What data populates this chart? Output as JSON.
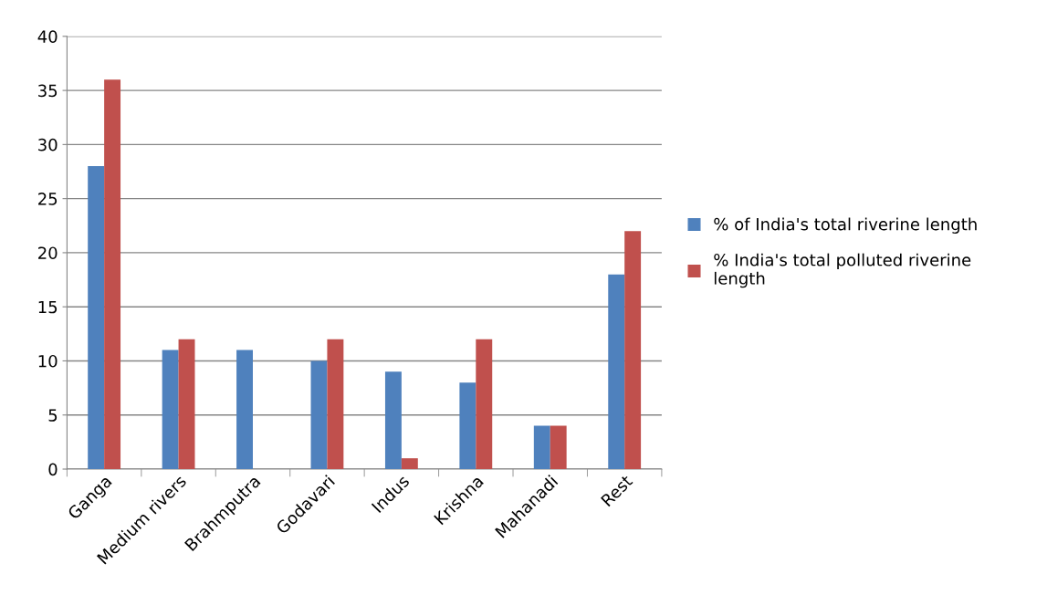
{
  "chart_data": {
    "type": "bar",
    "categories": [
      "Ganga",
      "Medium rivers",
      "Brahmputra",
      "Godavari",
      "Indus",
      "Krishna",
      "Mahanadi",
      "Rest"
    ],
    "series": [
      {
        "name": "% of India's total riverine length",
        "color": "#4f81bd",
        "values": [
          28,
          11,
          11,
          10,
          9,
          8,
          4,
          18
        ]
      },
      {
        "name": "% India's total polluted riverine length",
        "color": "#c0504d",
        "values": [
          36,
          12,
          0,
          12,
          1,
          12,
          4,
          22
        ]
      }
    ],
    "ylim": [
      0,
      40
    ],
    "yticks": [
      0,
      5,
      10,
      15,
      20,
      25,
      30,
      35,
      40
    ],
    "grid": "y",
    "legend": "right"
  }
}
